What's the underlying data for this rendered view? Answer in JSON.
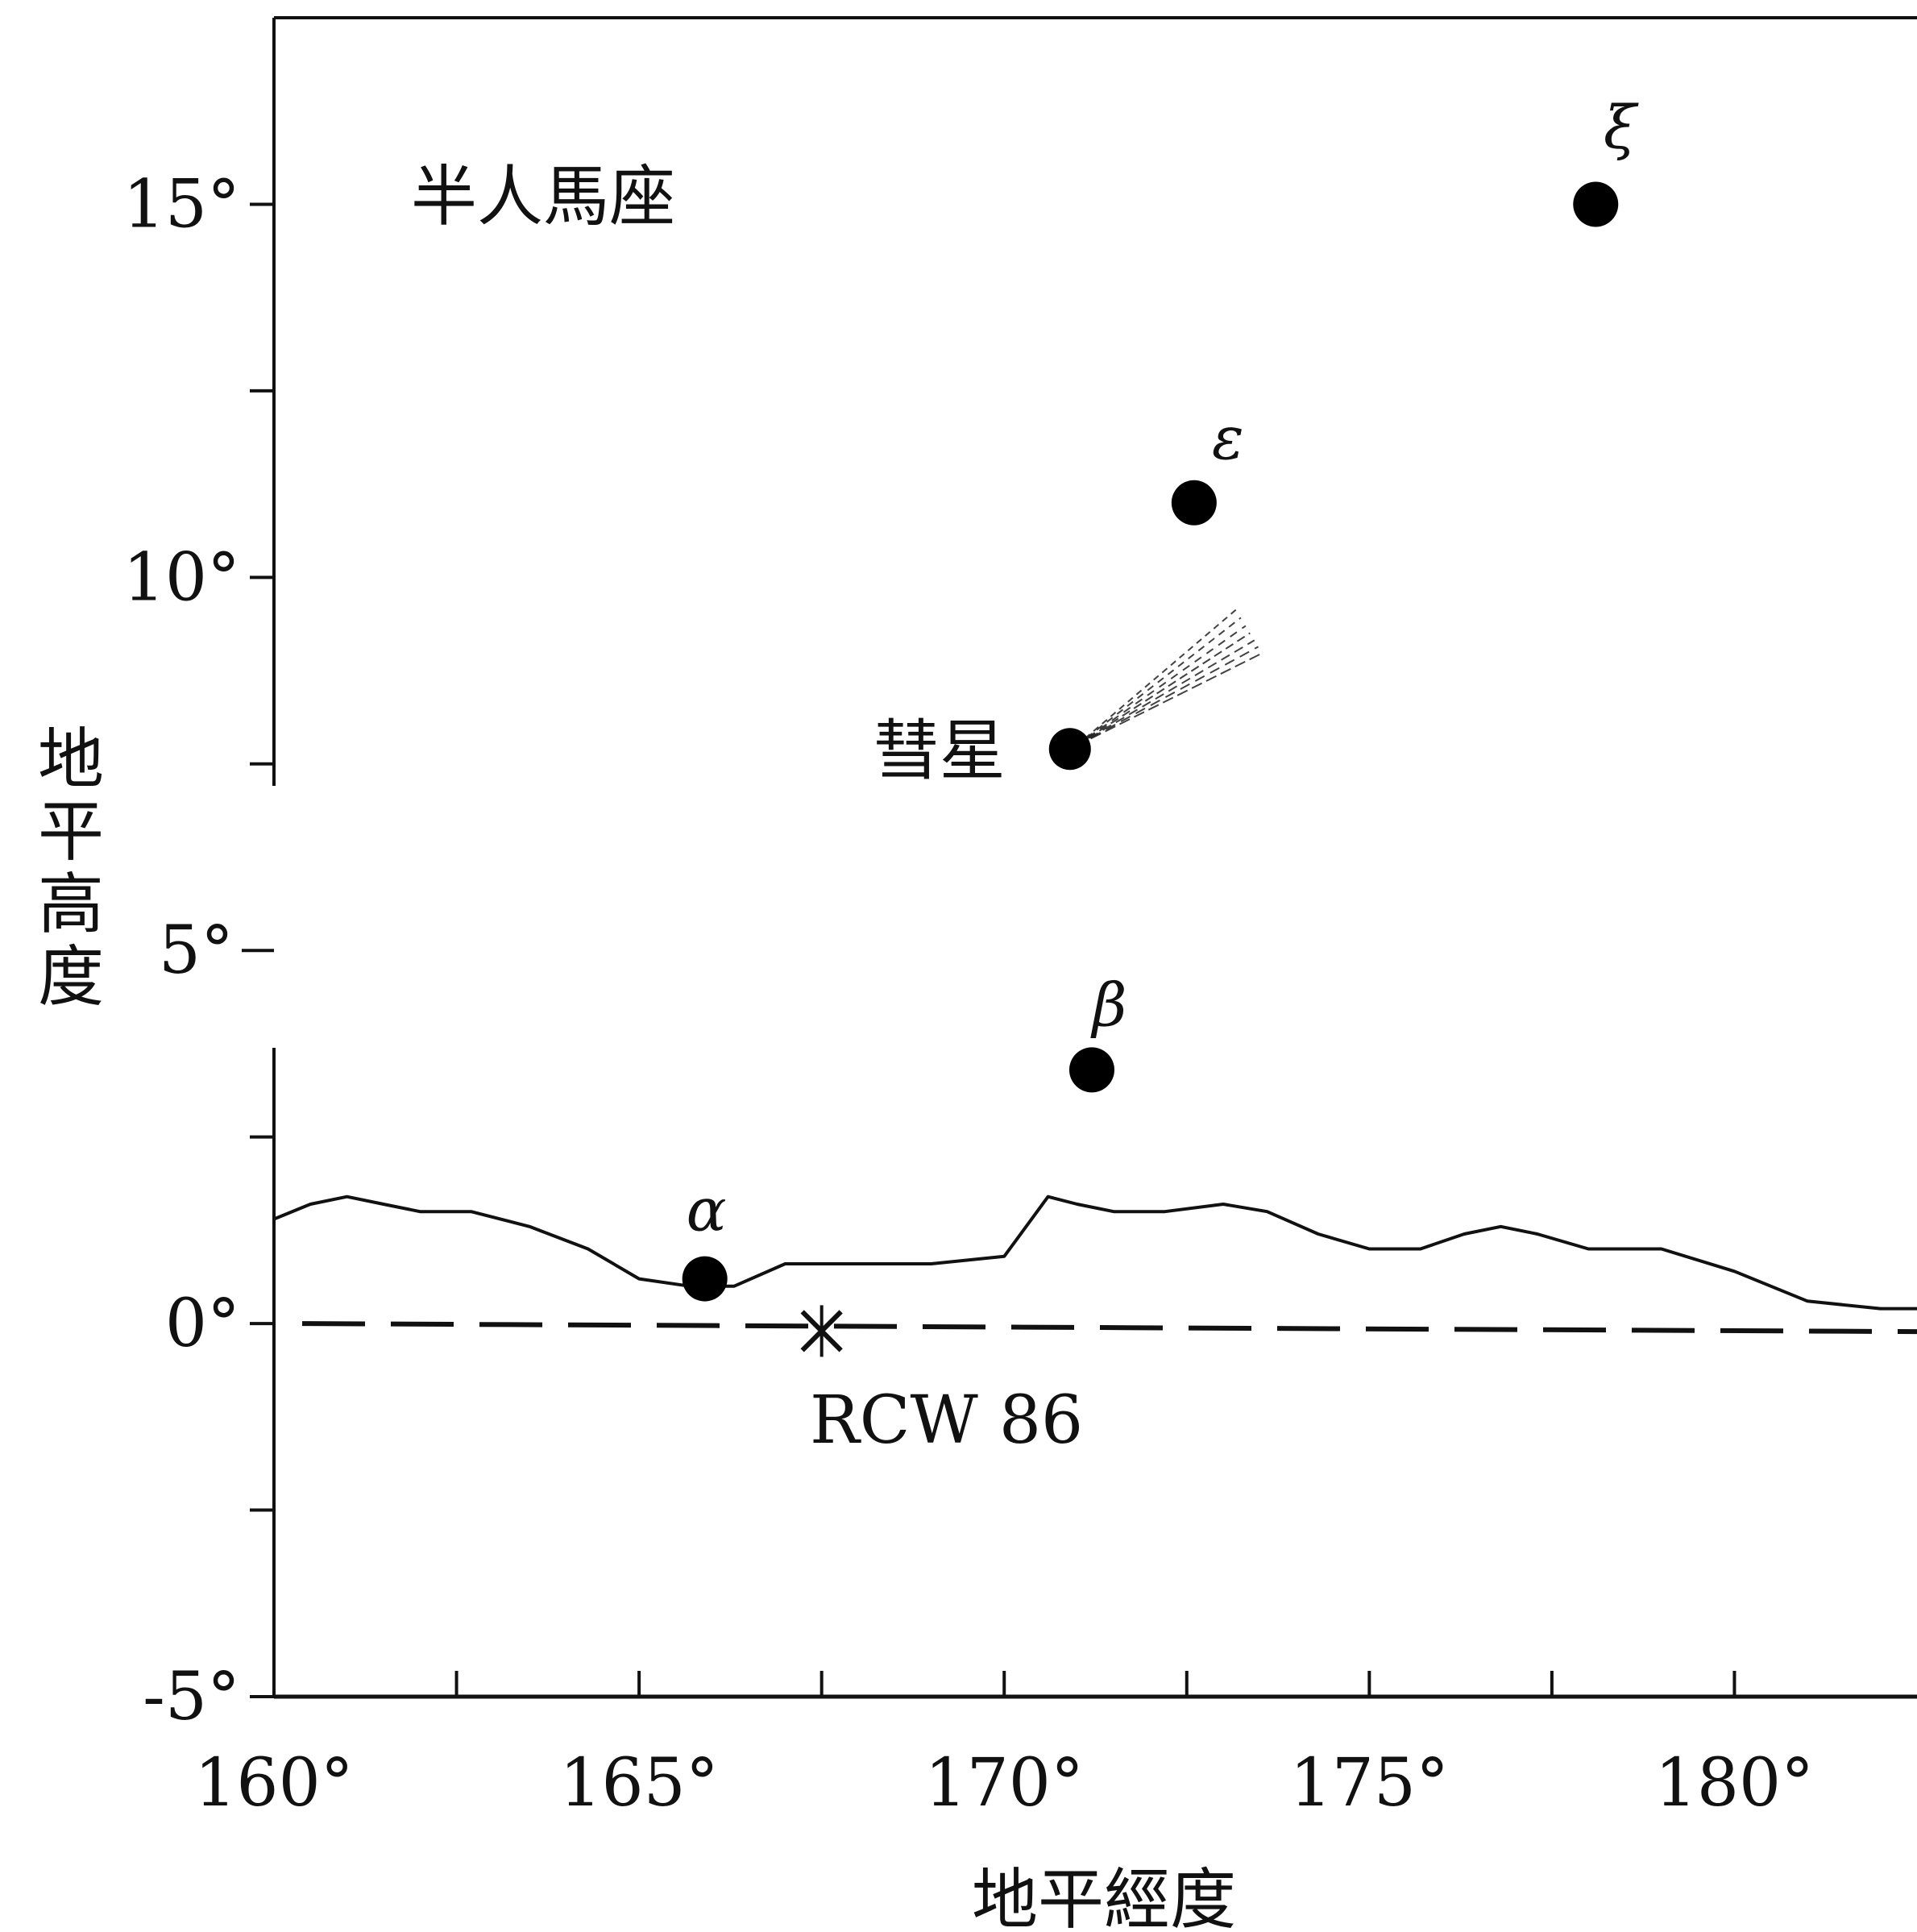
{
  "chart_data": {
    "type": "scatter",
    "xlabel": "地平經度",
    "ylabel": "地平高度",
    "xlim": [
      160,
      182.5
    ],
    "ylim": [
      -5,
      17.5
    ],
    "xticks": [
      {
        "value": 160,
        "label": "160°"
      },
      {
        "value": 165,
        "label": "165°"
      },
      {
        "value": 170,
        "label": "170°"
      },
      {
        "value": 175,
        "label": "175°"
      },
      {
        "value": 180,
        "label": "180°"
      }
    ],
    "yticks": [
      {
        "value": 15,
        "label": "15°"
      },
      {
        "value": 10,
        "label": "10°"
      },
      {
        "value": 5,
        "label": "5°"
      },
      {
        "value": 0,
        "label": "0°"
      },
      {
        "value": -5,
        "label": "-5°"
      }
    ],
    "minor_xticks": [
      162.5,
      167.5,
      172.5,
      177.5
    ],
    "minor_yticks": [
      12.5,
      7.5,
      2.5,
      -2.5
    ],
    "constellation_label": "半人馬座",
    "stars": [
      {
        "name": "ξ",
        "x": 178.1,
        "y": 15.0
      },
      {
        "name": "ε",
        "x": 172.6,
        "y": 11.0
      },
      {
        "name": "β",
        "x": 171.2,
        "y": 3.4
      },
      {
        "name": "α",
        "x": 165.9,
        "y": 0.6
      }
    ],
    "comet": {
      "label": "彗星",
      "x": 170.9,
      "y": 7.7,
      "tail_to": [
        173.4,
        9.2
      ]
    },
    "remnant": {
      "label": "RCW 86",
      "x": 167.5,
      "y": -0.1
    },
    "horizon_line": [
      [
        160.0,
        1.4
      ],
      [
        160.5,
        1.6
      ],
      [
        161.0,
        1.7
      ],
      [
        161.5,
        1.6
      ],
      [
        162.0,
        1.5
      ],
      [
        162.7,
        1.5
      ],
      [
        163.5,
        1.3
      ],
      [
        164.3,
        1.0
      ],
      [
        165.0,
        0.6
      ],
      [
        165.7,
        0.5
      ],
      [
        166.3,
        0.5
      ],
      [
        167.0,
        0.8
      ],
      [
        168.0,
        0.8
      ],
      [
        169.0,
        0.8
      ],
      [
        170.0,
        0.9
      ],
      [
        170.3,
        1.3
      ],
      [
        170.6,
        1.7
      ],
      [
        171.0,
        1.6
      ],
      [
        171.5,
        1.5
      ],
      [
        172.2,
        1.5
      ],
      [
        173.0,
        1.6
      ],
      [
        173.6,
        1.5
      ],
      [
        174.3,
        1.2
      ],
      [
        175.0,
        1.0
      ],
      [
        175.7,
        1.0
      ],
      [
        176.3,
        1.2
      ],
      [
        176.8,
        1.3
      ],
      [
        177.3,
        1.2
      ],
      [
        178.0,
        1.0
      ],
      [
        179.0,
        1.0
      ],
      [
        180.0,
        0.7
      ],
      [
        181.0,
        0.3
      ],
      [
        182.0,
        0.2
      ],
      [
        182.5,
        0.2
      ]
    ],
    "reference_line": {
      "y": 0,
      "style": "dashed"
    },
    "grid": false
  }
}
